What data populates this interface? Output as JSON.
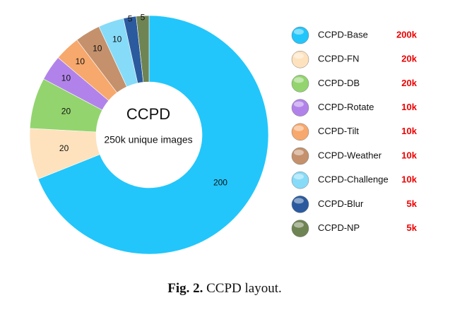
{
  "chart_data": {
    "type": "donut",
    "center_title": "CCPD",
    "center_subtitle": "250k unique images",
    "categories": [
      "CCPD-Base",
      "CCPD-FN",
      "CCPD-DB",
      "CCPD-Rotate",
      "CCPD-Tilt",
      "CCPD-Weather",
      "CCPD-Challenge",
      "CCPD-Blur",
      "CCPD-NP"
    ],
    "values": [
      200,
      20,
      20,
      10,
      10,
      10,
      10,
      5,
      5
    ],
    "value_labels": [
      "200k",
      "20k",
      "20k",
      "10k",
      "10k",
      "10k",
      "10k",
      "5k",
      "5k"
    ],
    "colors": [
      "#22c6fb",
      "#fde2bd",
      "#93d46e",
      "#b183ea",
      "#f7a86c",
      "#c4916c",
      "#86dbf8",
      "#2b5b9e",
      "#6f8453"
    ],
    "caption_label": "Fig. 2.",
    "caption_text": "CCPD layout."
  }
}
